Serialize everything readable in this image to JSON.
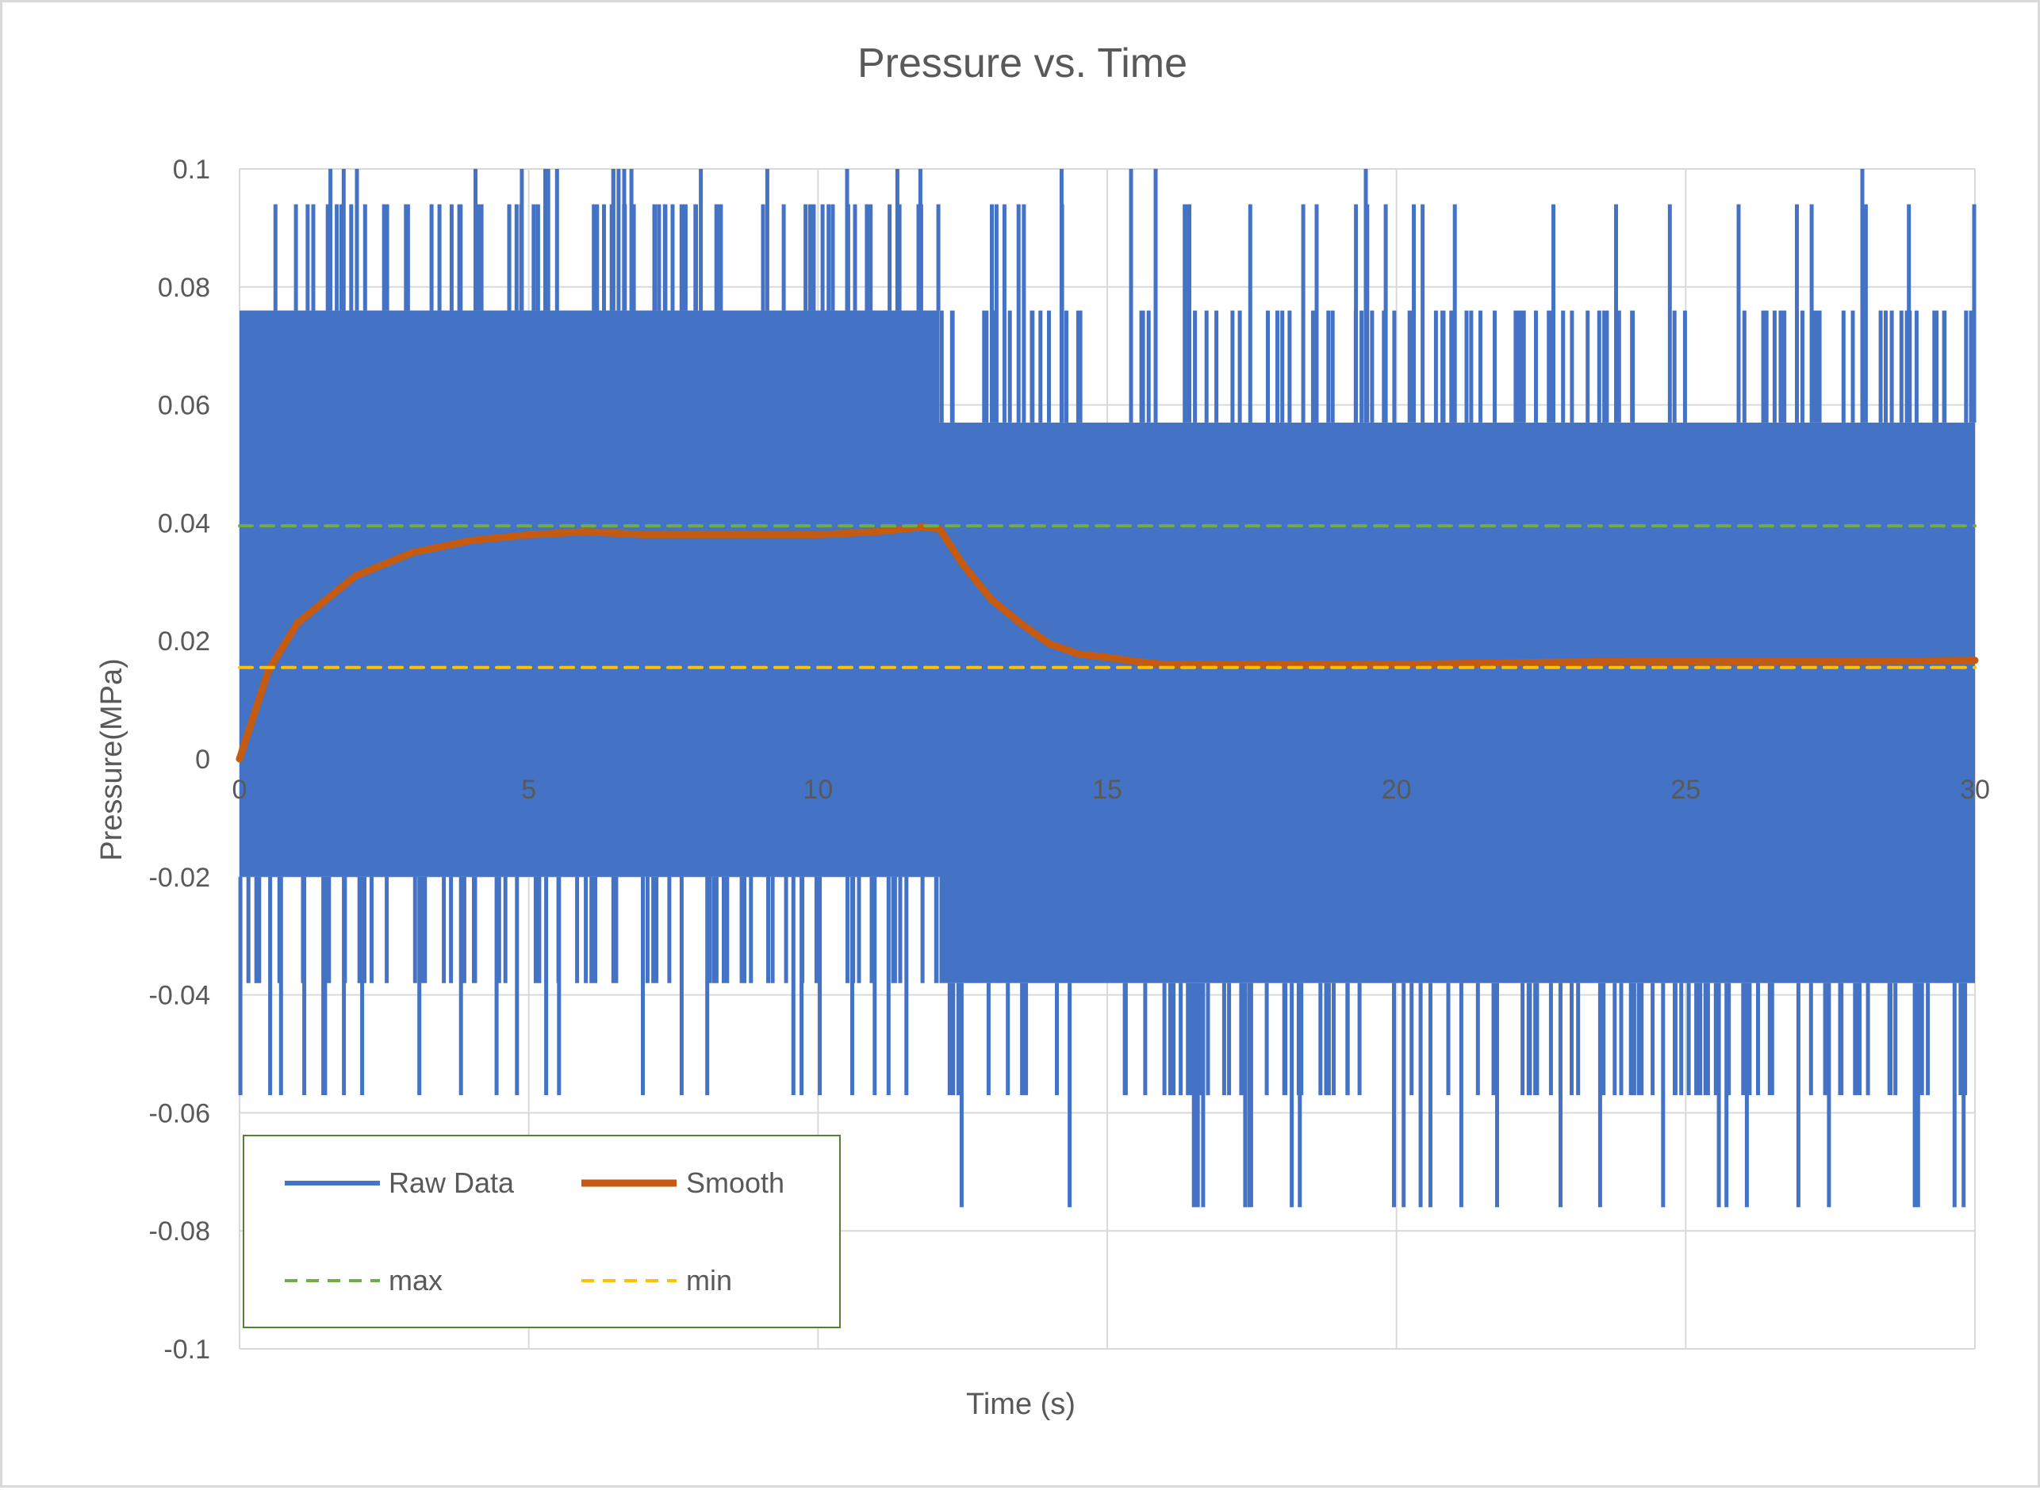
{
  "chart_data": {
    "type": "line",
    "title": "Pressure vs. Time",
    "xlabel": "Time (s)",
    "ylabel": "Pressure(MPa)",
    "xlim": [
      0,
      30
    ],
    "ylim": [
      -0.1,
      0.1
    ],
    "x_ticks": [
      "0",
      "5",
      "10",
      "15",
      "20",
      "25",
      "30"
    ],
    "y_ticks": [
      "0.1",
      "0.08",
      "0.06",
      "0.04",
      "0.02",
      "0",
      "-0.02",
      "-0.04",
      "-0.06",
      "-0.08",
      "-0.1"
    ],
    "grid": true,
    "legend_position": "bottom-left",
    "legend": [
      "Raw Data",
      "Smooth",
      "max",
      "min"
    ],
    "series": [
      {
        "name": "Raw Data",
        "color": "#4472c4",
        "style": "solid",
        "band": [
          {
            "x_start": 0,
            "x_end": 12.1,
            "y_low": -0.02,
            "y_high": 0.076,
            "spike_low_levels": [
              -0.038,
              -0.057
            ],
            "spike_high_levels": [
              0.094,
              0.1
            ]
          },
          {
            "x_start": 12.1,
            "x_end": 30,
            "y_low": -0.038,
            "y_high": 0.057,
            "spike_low_levels": [
              -0.057,
              -0.076,
              -0.094
            ],
            "spike_high_levels": [
              0.076,
              0.094,
              0.1
            ]
          }
        ]
      },
      {
        "name": "Smooth",
        "color": "#c55a11",
        "style": "solid",
        "x": [
          0,
          0.5,
          1,
          1.5,
          2,
          2.5,
          3,
          3.5,
          4,
          4.5,
          5,
          6,
          7,
          8,
          9,
          10,
          11,
          11.8,
          12.1,
          12.5,
          13,
          13.5,
          14,
          14.5,
          15,
          15.5,
          16,
          17,
          18,
          19,
          20,
          22,
          24,
          26,
          28,
          30
        ],
        "y": [
          0,
          0.015,
          0.023,
          0.027,
          0.031,
          0.033,
          0.035,
          0.036,
          0.037,
          0.0375,
          0.038,
          0.0385,
          0.038,
          0.038,
          0.038,
          0.038,
          0.0385,
          0.0393,
          0.039,
          0.033,
          0.027,
          0.023,
          0.0195,
          0.0178,
          0.0172,
          0.0165,
          0.016,
          0.016,
          0.016,
          0.016,
          0.016,
          0.0163,
          0.0165,
          0.0165,
          0.0165,
          0.0167
        ]
      },
      {
        "name": "max",
        "color": "#70ad47",
        "style": "dashed",
        "x": [
          0,
          30
        ],
        "y": [
          0.0395,
          0.0395
        ]
      },
      {
        "name": "min",
        "color": "#ffc000",
        "style": "dashed",
        "x": [
          0,
          30
        ],
        "y": [
          0.0155,
          0.0155
        ]
      }
    ]
  }
}
